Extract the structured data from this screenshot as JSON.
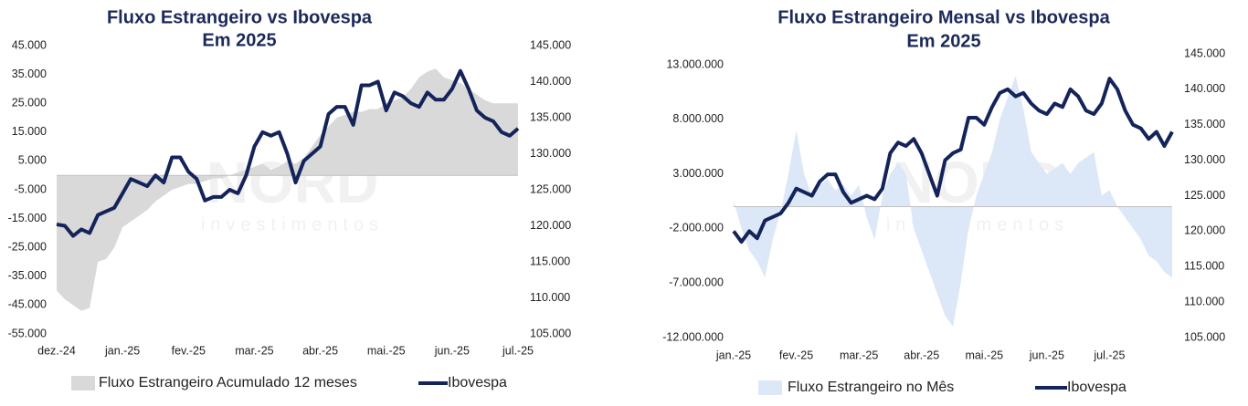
{
  "chart_data": [
    {
      "type": "combo",
      "title": "Fluxo Estrangeiro vs Ibovespa",
      "subtitle": "Em 2025",
      "watermark": "NORD",
      "watermark_sub": "investimentos",
      "categories": [
        "dez.-24",
        null,
        null,
        null,
        null,
        null,
        null,
        null,
        "jan.-25",
        null,
        null,
        null,
        null,
        null,
        null,
        null,
        "fev.-25",
        null,
        null,
        null,
        null,
        null,
        null,
        null,
        "mar.-25",
        null,
        null,
        null,
        null,
        null,
        null,
        null,
        "abr.-25",
        null,
        null,
        null,
        null,
        null,
        null,
        null,
        "mai.-25",
        null,
        null,
        null,
        null,
        null,
        null,
        null,
        "jun.-25",
        null,
        null,
        null,
        null,
        null,
        null,
        null,
        "jul.-25"
      ],
      "series": [
        {
          "name": "Fluxo Estrangeiro Acumulado 12 meses",
          "type": "area",
          "color": "#d9d9d9",
          "values": [
            -40000,
            -43000,
            -45000,
            -47000,
            -46000,
            -30000,
            -29000,
            -25000,
            -18000,
            -16000,
            -14000,
            -12000,
            -9000,
            -7000,
            -5000,
            -4000,
            -3000,
            -3000,
            -2000,
            -1000,
            -1000,
            0,
            1000,
            2000,
            3000,
            4000,
            2000,
            3000,
            5000,
            4000,
            6000,
            10000,
            14000,
            17000,
            20000,
            21000,
            22000,
            22000,
            23000,
            23000,
            25000,
            26000,
            27000,
            30000,
            34000,
            36000,
            37000,
            34000,
            33000,
            32000,
            30000,
            28000,
            26000,
            25000,
            25000,
            25000,
            25000
          ]
        },
        {
          "name": "Ibovespa",
          "type": "line",
          "axis": "y2",
          "color": "#14245a",
          "values": [
            120200,
            120000,
            118600,
            119500,
            119000,
            121500,
            122000,
            122500,
            124500,
            126500,
            126000,
            125500,
            127000,
            126000,
            129500,
            129500,
            127500,
            126500,
            123500,
            124000,
            124000,
            125000,
            124500,
            127000,
            131000,
            133000,
            132500,
            133000,
            130000,
            126000,
            129000,
            130000,
            131000,
            135500,
            136500,
            136500,
            134000,
            139500,
            139500,
            140000,
            136000,
            138500,
            138000,
            137000,
            136500,
            138500,
            137500,
            137500,
            139000,
            141500,
            139000,
            136000,
            135000,
            134500,
            133000,
            132500,
            133500
          ]
        }
      ],
      "ylim": [
        -55000,
        45000
      ],
      "yticks": [
        {
          "value": -55000,
          "label": "-55.000"
        },
        {
          "value": -45000,
          "label": "-45.000"
        },
        {
          "value": -35000,
          "label": "-35.000"
        },
        {
          "value": -25000,
          "label": "-25.000"
        },
        {
          "value": -15000,
          "label": "-15.000"
        },
        {
          "value": -5000,
          "label": "-5.000"
        },
        {
          "value": 5000,
          "label": "5.000"
        },
        {
          "value": 15000,
          "label": "15.000"
        },
        {
          "value": 25000,
          "label": "25.000"
        },
        {
          "value": 35000,
          "label": "35.000"
        },
        {
          "value": 45000,
          "label": "45.000"
        }
      ],
      "y2lim": [
        105000,
        145000
      ],
      "y2ticks": [
        {
          "value": 105000,
          "label": "105.000"
        },
        {
          "value": 110000,
          "label": "110.000"
        },
        {
          "value": 115000,
          "label": "115.000"
        },
        {
          "value": 120000,
          "label": "120.000"
        },
        {
          "value": 125000,
          "label": "125.000"
        },
        {
          "value": 130000,
          "label": "130.000"
        },
        {
          "value": 135000,
          "label": "135.000"
        },
        {
          "value": 140000,
          "label": "140.000"
        },
        {
          "value": 145000,
          "label": "145.000"
        }
      ],
      "grid": false,
      "legend": "bottom"
    },
    {
      "type": "combo",
      "title": "Fluxo Estrangeiro Mensal vs Ibovespa",
      "subtitle": "Em 2025",
      "watermark": "NORD",
      "watermark_sub": "investimentos",
      "categories": [
        "jan.-25",
        null,
        null,
        null,
        null,
        null,
        null,
        null,
        "fev.-25",
        null,
        null,
        null,
        null,
        null,
        null,
        null,
        "mar.-25",
        null,
        null,
        null,
        null,
        null,
        null,
        null,
        "abr.-25",
        null,
        null,
        null,
        null,
        null,
        null,
        null,
        "mai.-25",
        null,
        null,
        null,
        null,
        null,
        null,
        null,
        "jun.-25",
        null,
        null,
        null,
        null,
        null,
        null,
        null,
        "jul.-25",
        null,
        null,
        null,
        null,
        null,
        null,
        null,
        null
      ],
      "series": [
        {
          "name": "Fluxo Estrangeiro no Mês",
          "type": "area",
          "color": "#dce8f7",
          "values": [
            500000,
            -2000000,
            -4000000,
            -5000000,
            -6500000,
            -3000000,
            -500000,
            3000000,
            7000000,
            3000000,
            1000000,
            2000000,
            2500000,
            1500000,
            2000000,
            1000000,
            2000000,
            -1000000,
            -3000000,
            1000000,
            3000000,
            4000000,
            3000000,
            -2000000,
            -4000000,
            -6000000,
            -8000000,
            -10000000,
            -11000000,
            -7000000,
            -2000000,
            1000000,
            3000000,
            5000000,
            8000000,
            10000000,
            12000000,
            9000000,
            5000000,
            4000000,
            3000000,
            3500000,
            4000000,
            3000000,
            4000000,
            4500000,
            5000000,
            1000000,
            1500000,
            0,
            -1000000,
            -2000000,
            -3000000,
            -4500000,
            -5000000,
            -6000000,
            -6500000
          ]
        },
        {
          "name": "Ibovespa",
          "type": "line",
          "axis": "y2",
          "color": "#14245a",
          "values": [
            120000,
            118500,
            120000,
            119000,
            121500,
            122000,
            122500,
            124000,
            126000,
            125500,
            125000,
            127000,
            128000,
            128000,
            125500,
            124000,
            124500,
            125000,
            124500,
            126000,
            131000,
            132500,
            132000,
            133000,
            131000,
            128000,
            125000,
            130000,
            131000,
            131500,
            136000,
            136000,
            135000,
            137500,
            139500,
            140000,
            139000,
            139500,
            138000,
            137000,
            136500,
            138000,
            137500,
            140000,
            139000,
            137000,
            136500,
            138000,
            141500,
            140000,
            137000,
            135000,
            134500,
            133000,
            134000,
            132000,
            134000
          ]
        }
      ],
      "ylim": [
        -12000000,
        13000000
      ],
      "yticks": [
        {
          "value": -12000000,
          "label": "-12.000.000"
        },
        {
          "value": -7000000,
          "label": "-7.000.000"
        },
        {
          "value": -2000000,
          "label": "-2.000.000"
        },
        {
          "value": 3000000,
          "label": "3.000.000"
        },
        {
          "value": 8000000,
          "label": "8.000.000"
        },
        {
          "value": 13000000,
          "label": "13.000.000"
        }
      ],
      "y2lim": [
        105000,
        145000
      ],
      "y2ticks": [
        {
          "value": 105000,
          "label": "105.000"
        },
        {
          "value": 110000,
          "label": "110.000"
        },
        {
          "value": 115000,
          "label": "115.000"
        },
        {
          "value": 120000,
          "label": "120.000"
        },
        {
          "value": 125000,
          "label": "125.000"
        },
        {
          "value": 130000,
          "label": "130.000"
        },
        {
          "value": 135000,
          "label": "135.000"
        },
        {
          "value": 140000,
          "label": "140.000"
        },
        {
          "value": 145000,
          "label": "145.000"
        }
      ],
      "grid": false,
      "legend": "bottom"
    }
  ]
}
